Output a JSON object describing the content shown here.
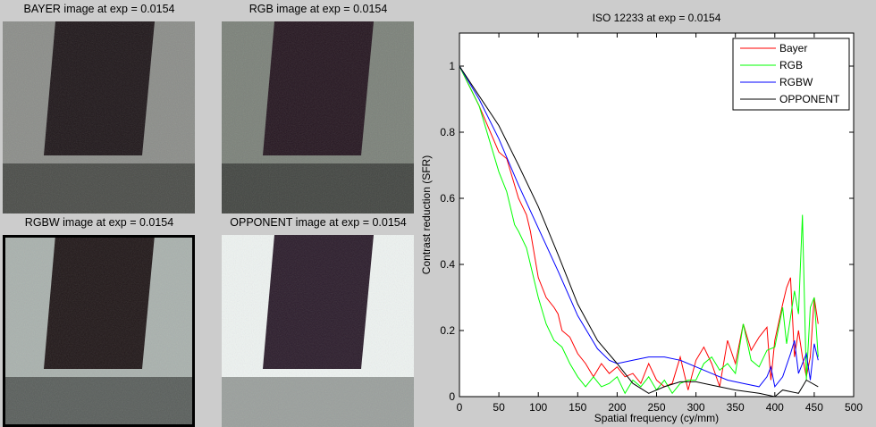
{
  "panels": [
    {
      "title": "BAYER image at exp = 0.0154",
      "colors": {
        "background": "#8b8d89",
        "band": "#4a4c48",
        "bar": "#1e1619"
      }
    },
    {
      "title": "RGB image at exp = 0.0154",
      "colors": {
        "background": "#7b8179",
        "band": "#424541",
        "bar": "#24151f"
      }
    },
    {
      "title": "RGBW image at exp = 0.0154",
      "colors": {
        "background": "#a9b1ad",
        "band": "#595e5b",
        "bar": "#1f1617"
      },
      "selected": true
    },
    {
      "title": "OPPONENT image at exp = 0.0154",
      "colors": {
        "background": "#eef3f1",
        "band": "#9a9f9c",
        "bar": "#2a1b2a"
      }
    }
  ],
  "chart_data": {
    "type": "line",
    "title": "ISO 12233 at exp = 0.0154",
    "xlabel": "Spatial frequency (cy/mm)",
    "ylabel": "Contrast reduction (SFR)",
    "xlim": [
      0,
      500
    ],
    "ylim": [
      0,
      1.1
    ],
    "xticks": [
      "0",
      "50",
      "100",
      "150",
      "200",
      "250",
      "300",
      "350",
      "400",
      "450",
      "500"
    ],
    "yticks": [
      "0",
      "0.2",
      "0.4",
      "0.6",
      "0.8",
      "1"
    ],
    "grid": false,
    "legend": "top-right",
    "series": [
      {
        "name": "Bayer",
        "color": "#ff0000",
        "x": [
          0,
          25,
          50,
          60,
          75,
          85,
          90,
          100,
          110,
          120,
          125,
          130,
          140,
          150,
          160,
          170,
          180,
          190,
          200,
          210,
          220,
          230,
          240,
          250,
          260,
          270,
          280,
          290,
          300,
          310,
          320,
          330,
          340,
          350,
          360,
          370,
          380,
          390,
          395,
          400,
          410,
          415,
          420,
          425,
          430,
          435,
          440,
          445,
          450,
          455
        ],
        "y": [
          1,
          0.88,
          0.74,
          0.72,
          0.6,
          0.55,
          0.5,
          0.36,
          0.3,
          0.27,
          0.25,
          0.2,
          0.18,
          0.13,
          0.1,
          0.06,
          0.1,
          0.07,
          0.09,
          0.06,
          0.07,
          0.04,
          0.1,
          0.05,
          0.03,
          0.04,
          0.12,
          0.02,
          0.11,
          0.15,
          0.1,
          0.03,
          0.17,
          0.1,
          0.22,
          0.14,
          0.18,
          0.21,
          0.05,
          0.17,
          0.28,
          0.33,
          0.36,
          0.12,
          0.2,
          0.12,
          0.06,
          0.12,
          0.3,
          0.22
        ]
      },
      {
        "name": "RGB",
        "color": "#00ff00",
        "x": [
          0,
          25,
          50,
          60,
          70,
          75,
          85,
          90,
          100,
          110,
          120,
          130,
          140,
          150,
          160,
          170,
          180,
          190,
          200,
          210,
          220,
          230,
          240,
          250,
          260,
          270,
          280,
          290,
          300,
          310,
          320,
          330,
          340,
          350,
          360,
          370,
          380,
          390,
          400,
          410,
          415,
          420,
          425,
          430,
          435,
          440,
          445,
          450,
          455
        ],
        "y": [
          1,
          0.88,
          0.68,
          0.62,
          0.52,
          0.5,
          0.45,
          0.4,
          0.3,
          0.22,
          0.17,
          0.15,
          0.1,
          0.06,
          0.03,
          0.06,
          0.03,
          0.04,
          0.06,
          0.01,
          0.05,
          0.03,
          0.06,
          0.02,
          0.05,
          0.01,
          0.04,
          0.05,
          0.05,
          0.1,
          0.12,
          0.08,
          0.1,
          0.07,
          0.22,
          0.11,
          0.09,
          0.14,
          0.15,
          0.27,
          0.16,
          0.24,
          0.32,
          0.25,
          0.55,
          0.05,
          0.27,
          0.3,
          0.12
        ]
      },
      {
        "name": "RGBW",
        "color": "#0000ff",
        "x": [
          0,
          25,
          50,
          75,
          100,
          125,
          150,
          175,
          190,
          200,
          220,
          240,
          260,
          280,
          300,
          320,
          340,
          360,
          380,
          390,
          395,
          400,
          410,
          420,
          425,
          430,
          440,
          445,
          450,
          455
        ],
        "y": [
          1,
          0.9,
          0.78,
          0.64,
          0.51,
          0.38,
          0.245,
          0.145,
          0.11,
          0.1,
          0.11,
          0.12,
          0.12,
          0.11,
          0.09,
          0.07,
          0.05,
          0.04,
          0.03,
          0.06,
          0.09,
          0.03,
          0.06,
          0.13,
          0.17,
          0.07,
          0.13,
          0.05,
          0.16,
          0.11
        ]
      },
      {
        "name": "OPPONENT",
        "color": "#000000",
        "x": [
          0,
          25,
          50,
          75,
          100,
          125,
          150,
          175,
          200,
          220,
          240,
          260,
          280,
          300,
          320,
          350,
          380,
          400,
          410,
          430,
          440,
          455
        ],
        "y": [
          1,
          0.91,
          0.82,
          0.7,
          0.575,
          0.43,
          0.28,
          0.17,
          0.1,
          0.04,
          0.01,
          0.03,
          0.045,
          0.045,
          0.035,
          0.02,
          0.01,
          0.0,
          0.02,
          0.01,
          0.05,
          0.03
        ]
      }
    ]
  }
}
